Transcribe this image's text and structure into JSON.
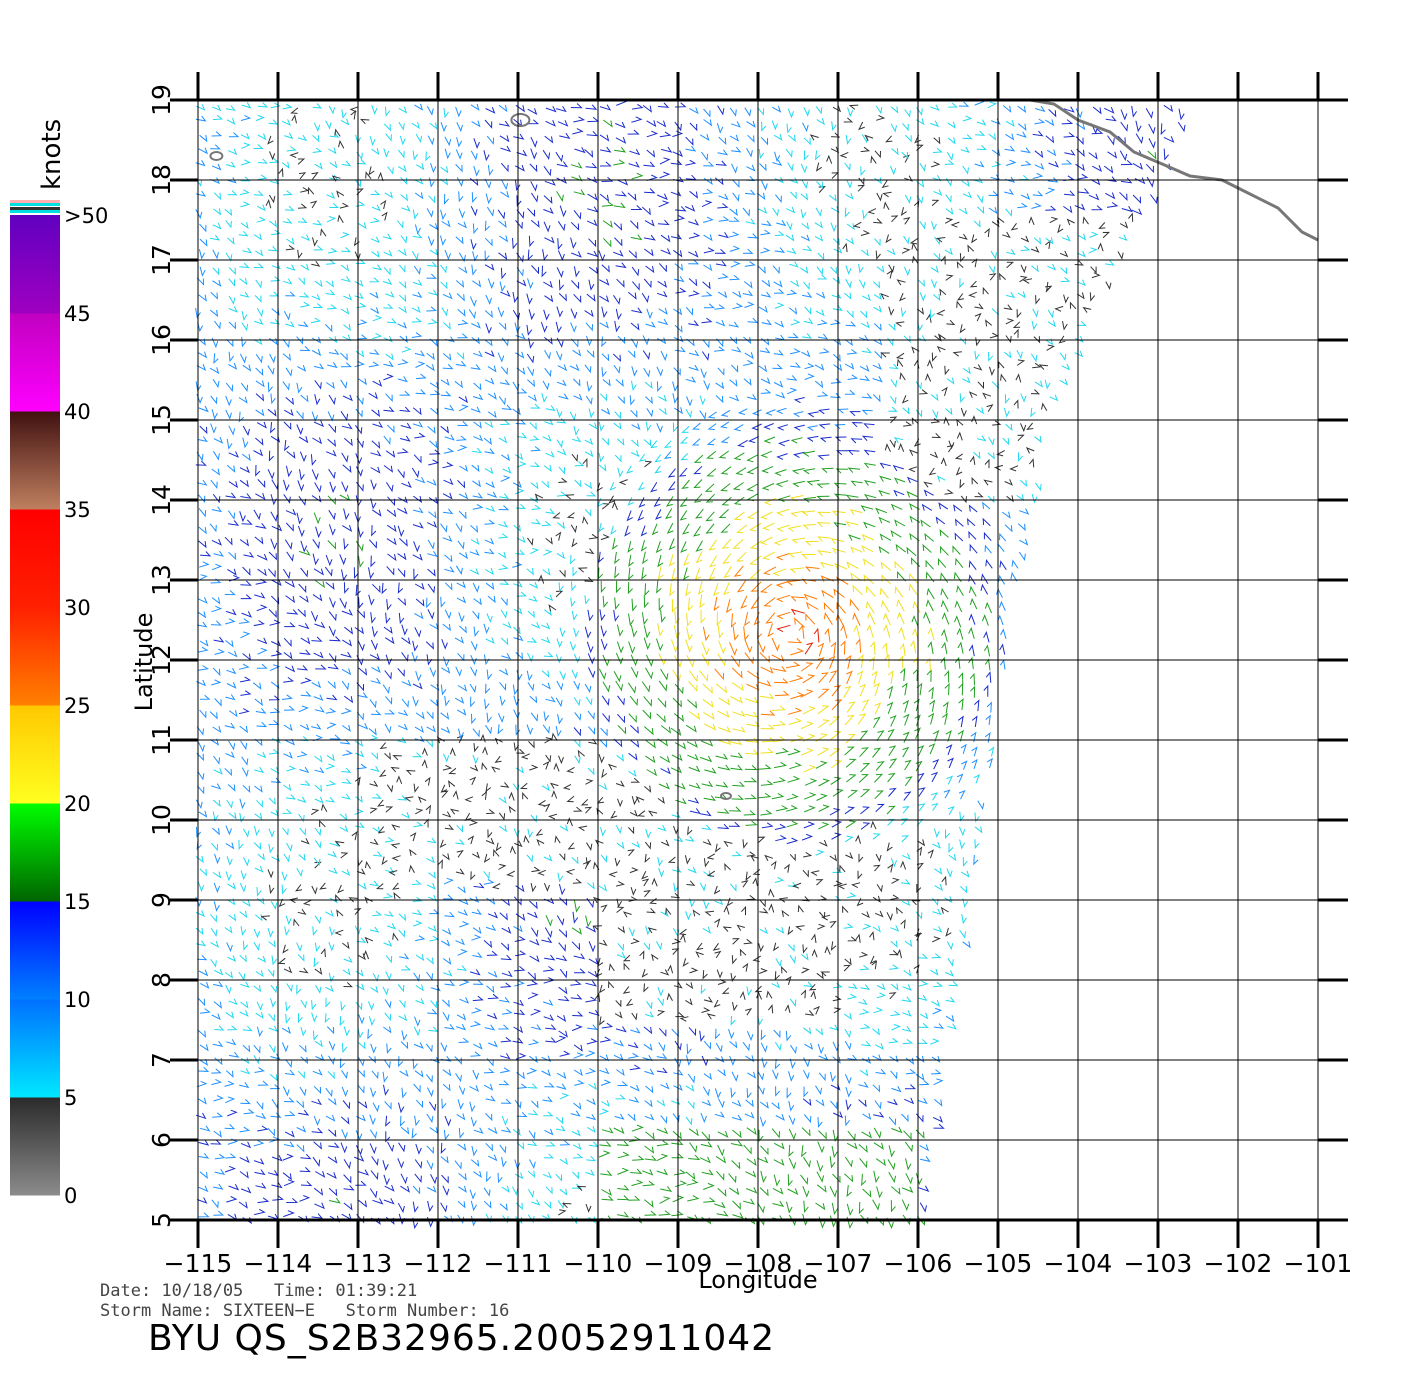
{
  "map": {
    "xlabel": "Longitude",
    "ylabel": "Latitude",
    "lon_ticks": [
      "−115",
      "−114",
      "−113",
      "−112",
      "−111",
      "−110",
      "−109",
      "−108",
      "−107",
      "−106",
      "−105",
      "−104",
      "−103",
      "−102",
      "−101"
    ],
    "lat_ticks": [
      "5",
      "6",
      "7",
      "8",
      "9",
      "10",
      "11",
      "12",
      "13",
      "14",
      "15",
      "16",
      "17",
      "18",
      "19"
    ],
    "lon_range": [
      -115,
      -101
    ],
    "lat_range": [
      5,
      19
    ],
    "coastline_color": "#777777",
    "grid": true
  },
  "legend": {
    "unit": "knots",
    "labels": [
      "0",
      "5",
      "10",
      "15",
      "20",
      "25",
      "30",
      "35",
      "40",
      "45",
      ">50"
    ],
    "bands": [
      {
        "from": 0,
        "to": 5,
        "colors": [
          "#8c8c8c",
          "#2a2a2a"
        ]
      },
      {
        "from": 5,
        "to": 10,
        "colors": [
          "#00e8ff",
          "#0070ff"
        ]
      },
      {
        "from": 10,
        "to": 15,
        "colors": [
          "#0080ff",
          "#0000ff"
        ]
      },
      {
        "from": 15,
        "to": 20,
        "colors": [
          "#006400",
          "#00ff00"
        ]
      },
      {
        "from": 20,
        "to": 25,
        "colors": [
          "#ffff20",
          "#ffc800"
        ]
      },
      {
        "from": 25,
        "to": 30,
        "colors": [
          "#ff8000",
          "#ff2000"
        ]
      },
      {
        "from": 30,
        "to": 35,
        "colors": [
          "#ff2000",
          "#ff0000"
        ]
      },
      {
        "from": 35,
        "to": 40,
        "colors": [
          "#c08060",
          "#401010"
        ]
      },
      {
        "from": 40,
        "to": 45,
        "colors": [
          "#ff00ff",
          "#c000c0"
        ]
      },
      {
        "from": 45,
        "to": 50,
        "colors": [
          "#a000c0",
          "#6000c0"
        ]
      }
    ]
  },
  "info": {
    "date_line": "Date: 10/18/05   Time: 01:39:21",
    "storm_line": "Storm Name: SIXTEEN−E   Storm Number: 16",
    "title": "BYU QS_S2B32965.20052911042"
  }
}
